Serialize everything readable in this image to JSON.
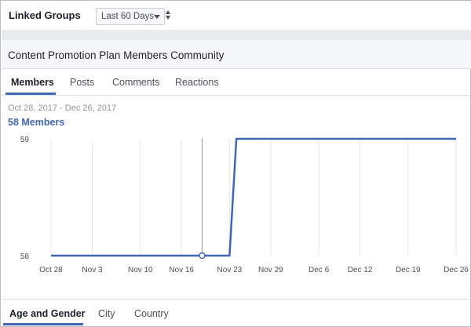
{
  "topbar": {
    "title": "Linked Groups",
    "range_value": "Last 60 Days"
  },
  "card": {
    "title": "Content Promotion Plan Members Community"
  },
  "tabs": [
    {
      "label": "Members",
      "active": true
    },
    {
      "label": "Posts",
      "active": false
    },
    {
      "label": "Comments",
      "active": false
    },
    {
      "label": "Reactions",
      "active": false
    }
  ],
  "summary": {
    "date_range": "Oct 28, 2017 - Dec 26, 2017",
    "members_count": "58",
    "members_label": "Members"
  },
  "bottom_tabs": [
    {
      "label": "Age and Gender",
      "active": true
    },
    {
      "label": "City",
      "active": false
    },
    {
      "label": "Country",
      "active": false
    }
  ],
  "colors": {
    "accent": "#4267b2",
    "grid": "#e5e7ea",
    "marker_line": "#8d949e"
  },
  "chart_data": {
    "type": "line",
    "x": [
      "Oct 28",
      "Nov 3",
      "Nov 10",
      "Nov 16",
      "Nov 23",
      "Nov 29",
      "Dec 6",
      "Dec 12",
      "Dec 19",
      "Dec 26"
    ],
    "series": [
      {
        "points": [
          {
            "x": "Oct 28",
            "y": 58
          },
          {
            "x": "Nov 19",
            "y": 58
          },
          {
            "x": "Nov 23",
            "y": 58
          },
          {
            "x": "Nov 24",
            "y": 59
          },
          {
            "x": "Dec 26",
            "y": 59
          }
        ]
      }
    ],
    "highlight_x": "Nov 19",
    "ylim": [
      58,
      59
    ],
    "yticks": [
      58,
      59
    ],
    "grid": "vertical",
    "xlabel": "",
    "ylabel": ""
  }
}
